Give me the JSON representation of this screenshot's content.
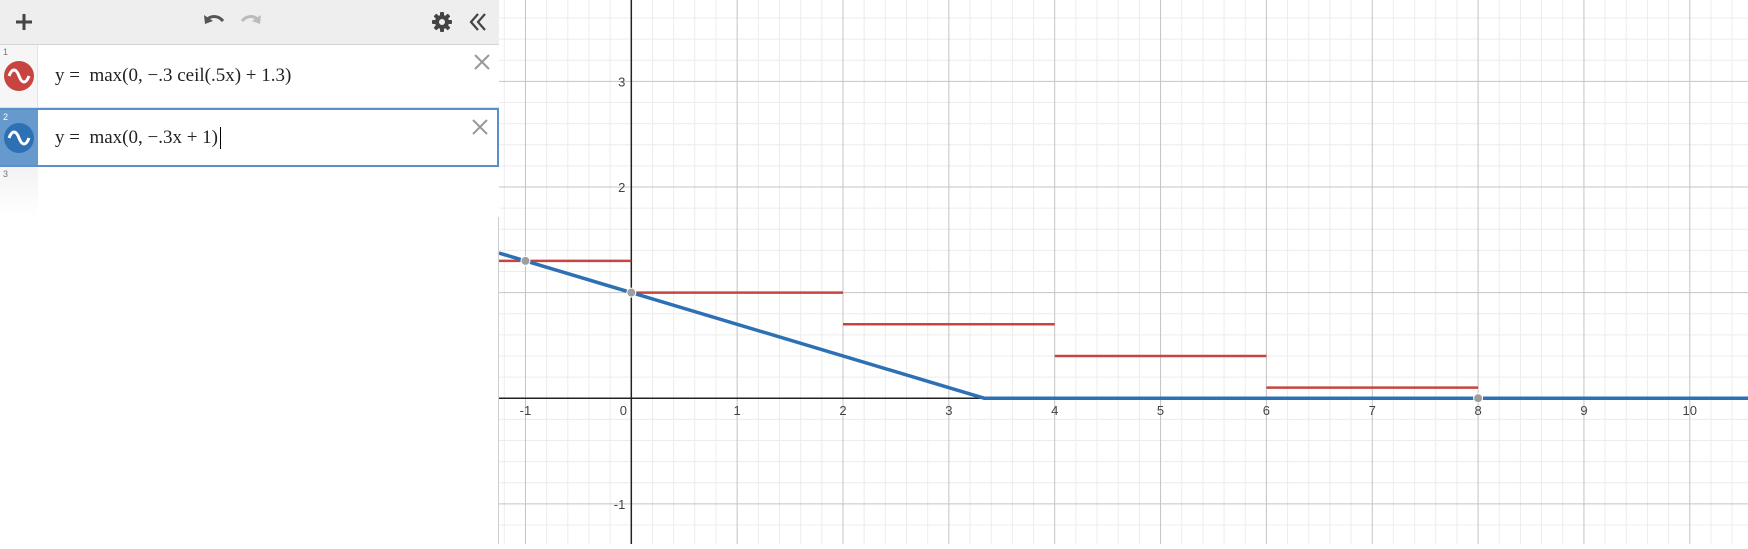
{
  "toolbar": {
    "add_icon": "plus-icon",
    "undo_icon": "undo-icon",
    "redo_icon": "redo-icon",
    "settings_icon": "gear-icon",
    "collapse_icon": "double-chevron-left-icon"
  },
  "expressions": [
    {
      "number": "1",
      "text": "y =  max(0, −.3 ceil(.5x) + 1.3)",
      "color": "#c74440",
      "icon": "wave-icon"
    },
    {
      "number": "2",
      "text": "y =  max(0, −.3x + 1)",
      "color": "#2d70b3",
      "icon": "wave-icon",
      "selected": true
    },
    {
      "number": "3",
      "text": ""
    }
  ],
  "graph": {
    "x_ticks": [
      "-1",
      "0",
      "1",
      "2",
      "3",
      "4",
      "5",
      "6",
      "7",
      "8",
      "9",
      "10"
    ],
    "y_ticks": [
      "3",
      "2",
      "-1"
    ],
    "colors": {
      "red": "#c74440",
      "blue": "#2d70b3",
      "point": "#9e9e9e"
    }
  },
  "chart_data": {
    "type": "line",
    "x_range": [
      -1.25,
      10.55
    ],
    "y_range": [
      -1.38,
      3.77
    ],
    "grid": true,
    "series": [
      {
        "color": "#c74440",
        "segments": [
          [
            [
              -1.25,
              1.3
            ],
            [
              0,
              1.3
            ]
          ],
          [
            [
              0,
              1.0
            ],
            [
              2,
              1.0
            ]
          ],
          [
            [
              2,
              0.7
            ],
            [
              4,
              0.7
            ]
          ],
          [
            [
              4,
              0.4
            ],
            [
              6,
              0.4
            ]
          ],
          [
            [
              6,
              0.1
            ],
            [
              8,
              0.1
            ]
          ],
          [
            [
              8,
              0
            ],
            [
              10.55,
              0
            ]
          ]
        ]
      },
      {
        "color": "#2d70b3",
        "points": [
          [
            -1.25,
            1.375
          ],
          [
            3.333,
            0
          ],
          [
            10.55,
            0
          ]
        ]
      }
    ],
    "points": [
      [
        -1,
        1.3
      ],
      [
        0,
        1.0
      ],
      [
        8,
        0
      ]
    ]
  }
}
